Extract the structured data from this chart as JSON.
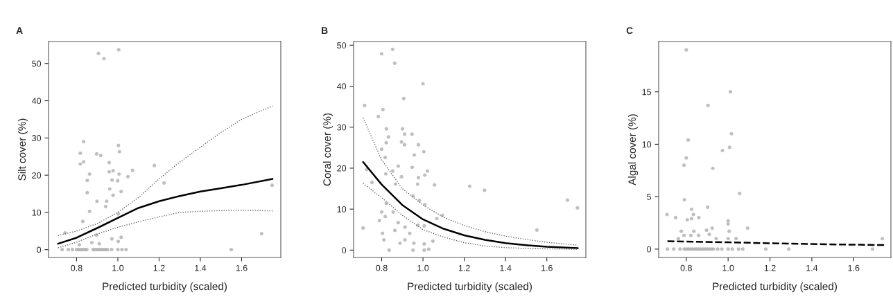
{
  "chart_data": [
    {
      "type": "scatter",
      "title": "A",
      "xlabel": "Predicted turbidity (scaled)",
      "ylabel": "Silt cover (%)",
      "xlim": [
        0.664,
        1.79
      ],
      "ylim": [
        -2.1,
        55.9
      ],
      "xticks": [
        {
          "value": 0.8,
          "label": "0.8"
        },
        {
          "value": 1.0,
          "label": "1.0"
        },
        {
          "value": 1.2,
          "label": "1.2"
        },
        {
          "value": 1.4,
          "label": "1.4"
        },
        {
          "value": 1.6,
          "label": "1.6"
        }
      ],
      "yticks": [
        0,
        10,
        20,
        30,
        40,
        50
      ],
      "grid": false,
      "legend": false,
      "series": [
        {
          "color": "#aaaaaa",
          "marker": "circle",
          "x": [
            0.906,
            0.933,
            1.004,
            0.818,
            0.834,
            0.818,
            0.834,
            0.863,
            0.852,
            0.852,
            0.863,
            0.897,
            0.917,
            0.958,
            0.958,
            0.977,
            0.972,
            0.961,
            0.977,
            1.003,
            1.008,
            1.006,
            0.999,
            1.016,
            1.049,
            1.071,
            1.177,
            1.224,
            0.899,
            0.946,
            0.941,
            0.83,
            1.002,
            1.697,
            1.55,
            1.748,
            0.897,
            0.971,
            1.002,
            1.016,
            0.91,
            0.874,
            0.744,
            0.813,
            0.73,
            0.76,
            0.78,
            0.8,
            0.81,
            0.82,
            0.83,
            0.84,
            0.85,
            0.88,
            0.89,
            0.9,
            0.91,
            0.92,
            0.93,
            0.94,
            0.95,
            0.97,
            1.0,
            1.02,
            1.04
          ],
          "values": [
            52.7,
            51.3,
            53.7,
            25.9,
            29,
            23,
            23.6,
            20.3,
            18.6,
            15.3,
            10.3,
            25.7,
            25.3,
            23.4,
            20.9,
            21.2,
            18.7,
            16.3,
            14.6,
            28,
            26.3,
            20.3,
            18.5,
            15.6,
            19.6,
            21.3,
            22.6,
            17.9,
            13,
            13,
            11.6,
            7.6,
            9.6,
            4.3,
            0,
            17.3,
            3.9,
            2.9,
            2.2,
            3.3,
            1.6,
            1.9,
            4.5,
            1.3,
            0,
            0,
            0,
            0,
            0,
            0,
            0,
            0,
            0,
            0,
            0,
            0,
            0,
            0,
            0,
            0,
            0,
            0,
            0,
            0,
            0
          ]
        },
        {
          "type": "line",
          "color": "#000000",
          "line_style": "solid",
          "x": [
            0.71,
            0.8,
            0.9,
            1.0,
            1.1,
            1.2,
            1.3,
            1.4,
            1.5,
            1.6,
            1.75
          ],
          "values": [
            1.6,
            3.2,
            5.8,
            8.5,
            11.2,
            13.0,
            14.4,
            15.6,
            16.5,
            17.4,
            19
          ]
        },
        {
          "type": "line",
          "color": "#666666",
          "line_style": "dotted",
          "x": [
            0.71,
            0.8,
            0.9,
            1.0,
            1.1,
            1.2,
            1.3,
            1.4,
            1.5,
            1.6,
            1.75
          ],
          "values": [
            3.8,
            5,
            7,
            10,
            14,
            19,
            23.5,
            27.5,
            31.5,
            35,
            38.6
          ]
        },
        {
          "type": "line",
          "color": "#666666",
          "line_style": "dotted",
          "x": [
            0.71,
            0.8,
            0.9,
            1.0,
            1.1,
            1.2,
            1.3,
            1.4,
            1.5,
            1.6,
            1.75
          ],
          "values": [
            0.5,
            2,
            4.2,
            6,
            7.5,
            8.8,
            10,
            10.3,
            10.5,
            10.6,
            10.4
          ]
        }
      ]
    },
    {
      "type": "scatter",
      "title": "B",
      "xlabel": "Predicted turbidity (scaled)",
      "ylabel": "Coral cover (%)",
      "xlim": [
        0.664,
        1.789
      ],
      "ylim": [
        -1.8,
        50.9
      ],
      "xticks": [
        {
          "value": 0.8,
          "label": "0.8"
        },
        {
          "value": 1.0,
          "label": "1.0"
        },
        {
          "value": 1.2,
          "label": "1.2"
        },
        {
          "value": 1.4,
          "label": "1.4"
        },
        {
          "value": 1.6,
          "label": "1.6"
        }
      ],
      "yticks": [
        0,
        10,
        20,
        30,
        40,
        50
      ],
      "grid": false,
      "legend": false,
      "series": [
        {
          "color": "#aaaaaa",
          "marker": "circle",
          "x": [
            0.8,
            0.853,
            0.863,
            1.0,
            0.907,
            0.717,
            0.806,
            0.784,
            0.823,
            0.901,
            0.911,
            0.947,
            0.833,
            0.822,
            0.896,
            0.911,
            0.978,
            0.8,
            1.004,
            0.958,
            0.817,
            0.88,
            0.948,
            0.853,
            0.82,
            0.896,
            0.978,
            1.009,
            1.022,
            0.728,
            0.753,
            0.867,
            0.974,
            1.056,
            1.226,
            1.298,
            1.7,
            1.748,
            1.552,
            0.71,
            0.8,
            0.789,
            0.822,
            0.817,
            0.804,
            0.811,
            0.836,
            0.856,
            0.864,
            0.88,
            0.889,
            0.913,
            0.913,
            0.936,
            0.952,
            0.956,
            0.952,
            0.983,
            1.009,
            0.976,
            1.006,
            1.006,
            1.048,
            1.067,
            1.094,
            1.006,
            1.028
          ],
          "values": [
            47.9,
            49,
            45.6,
            40.6,
            37,
            35.3,
            34.3,
            32.6,
            29.6,
            29.6,
            28.3,
            28.3,
            27.6,
            26.2,
            26.4,
            25.7,
            25.7,
            24.6,
            24,
            23.2,
            22.6,
            20.5,
            20.2,
            19.3,
            18.6,
            17.9,
            17.7,
            18.3,
            19.3,
            19.7,
            16.5,
            16.1,
            16.1,
            15.9,
            15.6,
            14.6,
            12.2,
            10.3,
            4.9,
            5.4,
            9.3,
            7.2,
            11.4,
            8.2,
            4.1,
            2.5,
            0,
            9.3,
            4.8,
            6.7,
            1.7,
            2.5,
            5.6,
            4.1,
            0,
            1.7,
            13.2,
            12.1,
            11.1,
            6.1,
            0,
            1.5,
            2.2,
            7.7,
            8.5,
            5.9,
            0.2
          ]
        },
        {
          "type": "line",
          "color": "#000000",
          "line_style": "solid",
          "x": [
            0.71,
            0.8,
            0.9,
            1.0,
            1.1,
            1.2,
            1.3,
            1.4,
            1.5,
            1.6,
            1.75
          ],
          "values": [
            21.5,
            16,
            11,
            7.5,
            5.2,
            3.6,
            2.5,
            1.7,
            1.2,
            0.8,
            0.5
          ]
        },
        {
          "type": "line",
          "color": "#666666",
          "line_style": "dotted",
          "x": [
            0.71,
            0.8,
            0.9,
            1.0,
            1.1,
            1.2,
            1.3,
            1.4,
            1.5,
            1.6,
            1.75
          ],
          "values": [
            32.3,
            22,
            15,
            11,
            8,
            6,
            4.5,
            3.4,
            2.6,
            1.9,
            1.2
          ]
        },
        {
          "type": "line",
          "color": "#666666",
          "line_style": "dotted",
          "x": [
            0.71,
            0.8,
            0.9,
            1.0,
            1.1,
            1.2,
            1.3,
            1.4,
            1.5,
            1.6,
            1.75
          ],
          "values": [
            16.3,
            12.8,
            8.5,
            5,
            3.2,
            1.8,
            1,
            0.6,
            0.4,
            0.3,
            0.2
          ]
        }
      ]
    },
    {
      "type": "scatter",
      "title": "C",
      "xlabel": "Predicted turbidity (scaled)",
      "ylabel": "Algal cover (%)",
      "xlim": [
        0.668,
        1.778
      ],
      "ylim": [
        -0.8,
        19.8
      ],
      "xticks": [
        {
          "value": 0.8,
          "label": "0.8"
        },
        {
          "value": 1.0,
          "label": "1.0"
        },
        {
          "value": 1.2,
          "label": "1.2"
        },
        {
          "value": 1.4,
          "label": "1.4"
        },
        {
          "value": 1.6,
          "label": "1.6"
        }
      ],
      "yticks": [
        0,
        5,
        10,
        15
      ],
      "grid": false,
      "legend": false,
      "series": [
        {
          "color": "#aaaaaa",
          "marker": "circle",
          "x": [
            0.8,
            1.011,
            0.904,
            1.016,
            0.809,
            1.007,
            0.973,
            0.8,
            0.789,
            0.927,
            1.055,
            0.791,
            0.708,
            0.749,
            0.825,
            0.902,
            0.834,
            0.86,
            0.805,
            0.825,
            1.0,
            1.0,
            1.093,
            0.924,
            0.897,
            0.776,
            0.836,
            1.005,
            0.789,
            0.822,
            0.859,
            0.91,
            0.762,
            1.737,
            1.038,
            1.0,
            0.943,
            0.71,
            0.74,
            0.77,
            0.79,
            0.8,
            0.81,
            0.82,
            0.83,
            0.84,
            0.85,
            0.86,
            0.87,
            0.88,
            0.89,
            0.9,
            0.91,
            0.92,
            0.93,
            0.95,
            0.97,
            1.0,
            1.02,
            1.05,
            1.07,
            1.18,
            1.29,
            1.69
          ],
          "values": [
            19,
            15,
            13.7,
            11,
            10.4,
            9.7,
            9.4,
            8.7,
            8,
            7.7,
            5.3,
            4.7,
            3.3,
            3,
            3.8,
            4,
            3.3,
            3,
            2.8,
            2.9,
            2.7,
            2.4,
            2,
            2,
            1.8,
            1.7,
            1.7,
            1.7,
            1.3,
            1.3,
            1.3,
            1.4,
            1,
            1,
            1,
            1,
            1,
            0,
            0,
            0,
            0,
            0,
            0,
            0,
            0,
            0,
            0,
            0,
            0,
            0,
            0,
            0,
            0,
            0,
            0,
            0,
            0,
            0,
            0,
            0,
            0,
            0,
            0,
            0
          ]
        },
        {
          "type": "line",
          "color": "#000000",
          "line_style": "dashed",
          "x": [
            0.71,
            1.0,
            1.2,
            1.4,
            1.6,
            1.75
          ],
          "values": [
            0.75,
            0.65,
            0.55,
            0.48,
            0.42,
            0.38
          ]
        }
      ]
    }
  ]
}
